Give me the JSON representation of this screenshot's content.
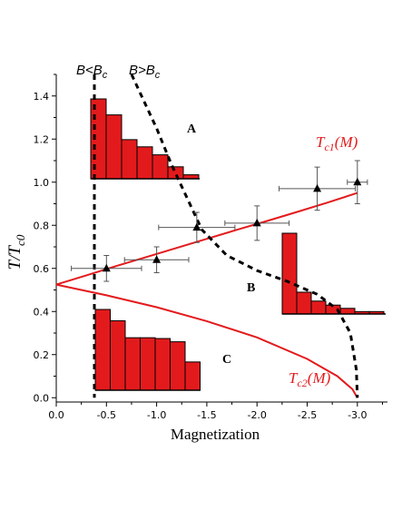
{
  "chart_data": {
    "type": "line",
    "xlabel": "Magnetization",
    "ylabel_main": "T/T",
    "ylabel_sub": "c0",
    "xlim": [
      0.0,
      -3.3
    ],
    "ylim": [
      -0.02,
      1.5
    ],
    "x_ticks": [
      0.0,
      -0.5,
      -1.0,
      -1.5,
      -2.0,
      -2.5,
      -3.0
    ],
    "x_tick_labels": [
      "0.0",
      "-0.5",
      "-1.0",
      "-1.5",
      "-2.0",
      "-2.5",
      "-3.0"
    ],
    "y_ticks": [
      0.0,
      0.2,
      0.4,
      0.6,
      0.8,
      1.0,
      1.2,
      1.4
    ],
    "y_tick_labels": [
      "0.0",
      "0.2",
      "0.4",
      "0.6",
      "0.8",
      "1.0",
      "1.2",
      "1.4"
    ],
    "colors": {
      "curve": "#e31a1c",
      "bar": "#e31a1c",
      "marker": "#000000"
    },
    "curves": [
      {
        "label_main": "T",
        "label_sub": "c1",
        "label_tail": "(M)",
        "x": [
          0.0,
          -0.3,
          -0.6,
          -0.9,
          -1.2,
          -1.5,
          -1.8,
          -2.1,
          -2.4,
          -2.7,
          -3.0
        ],
        "y": [
          0.525,
          0.568,
          0.611,
          0.653,
          0.695,
          0.737,
          0.779,
          0.82,
          0.862,
          0.905,
          0.95
        ]
      },
      {
        "label_main": "T",
        "label_sub": "c2",
        "label_tail": "(M)",
        "x": [
          0.0,
          -0.5,
          -1.0,
          -1.5,
          -2.0,
          -2.5,
          -2.8,
          -2.95,
          -3.0
        ],
        "y": [
          0.525,
          0.475,
          0.42,
          0.355,
          0.28,
          0.18,
          0.1,
          0.04,
          0.0
        ]
      }
    ],
    "boundaries": [
      {
        "label_main": "B<B",
        "label_sub": "c",
        "x": [
          -0.38,
          -0.38,
          -0.38,
          -0.38,
          -0.38,
          -0.38
        ],
        "y": [
          1.5,
          1.1,
          0.7,
          0.4,
          0.1,
          0.0
        ]
      },
      {
        "label_main": "B>B",
        "label_sub": "c",
        "x": [
          -0.75,
          -0.85,
          -1.0,
          -1.15,
          -1.3,
          -1.45,
          -1.7,
          -2.0,
          -2.3,
          -2.6,
          -2.8,
          -2.93,
          -2.99,
          -3.0
        ],
        "y": [
          1.5,
          1.4,
          1.25,
          1.08,
          0.93,
          0.78,
          0.66,
          0.59,
          0.54,
          0.48,
          0.41,
          0.3,
          0.13,
          0.0
        ]
      }
    ],
    "points": [
      {
        "x": -0.5,
        "y": 0.6,
        "xerr": 0.35,
        "yerr": 0.06
      },
      {
        "x": -1.0,
        "y": 0.64,
        "xerr": 0.32,
        "yerr": 0.06
      },
      {
        "x": -1.4,
        "y": 0.79,
        "xerr": 0.38,
        "yerr": 0.07
      },
      {
        "x": -2.0,
        "y": 0.81,
        "xerr": 0.32,
        "yerr": 0.08
      },
      {
        "x": -2.6,
        "y": 0.97,
        "xerr": 0.38,
        "yerr": 0.1
      },
      {
        "x": -3.0,
        "y": 1.0,
        "xerr": 0.1,
        "yerr": 0.1
      }
    ],
    "regions": [
      "A",
      "B",
      "C"
    ],
    "histograms": [
      {
        "values": [
          1.0,
          0.8,
          0.49,
          0.4,
          0.3,
          0.15,
          0.05
        ]
      },
      {
        "values": [
          1.0,
          0.27,
          0.16,
          0.11,
          0.07,
          0.03,
          0.03
        ]
      },
      {
        "values": [
          1.0,
          0.86,
          0.65,
          0.65,
          0.64,
          0.6,
          0.35
        ]
      }
    ]
  }
}
